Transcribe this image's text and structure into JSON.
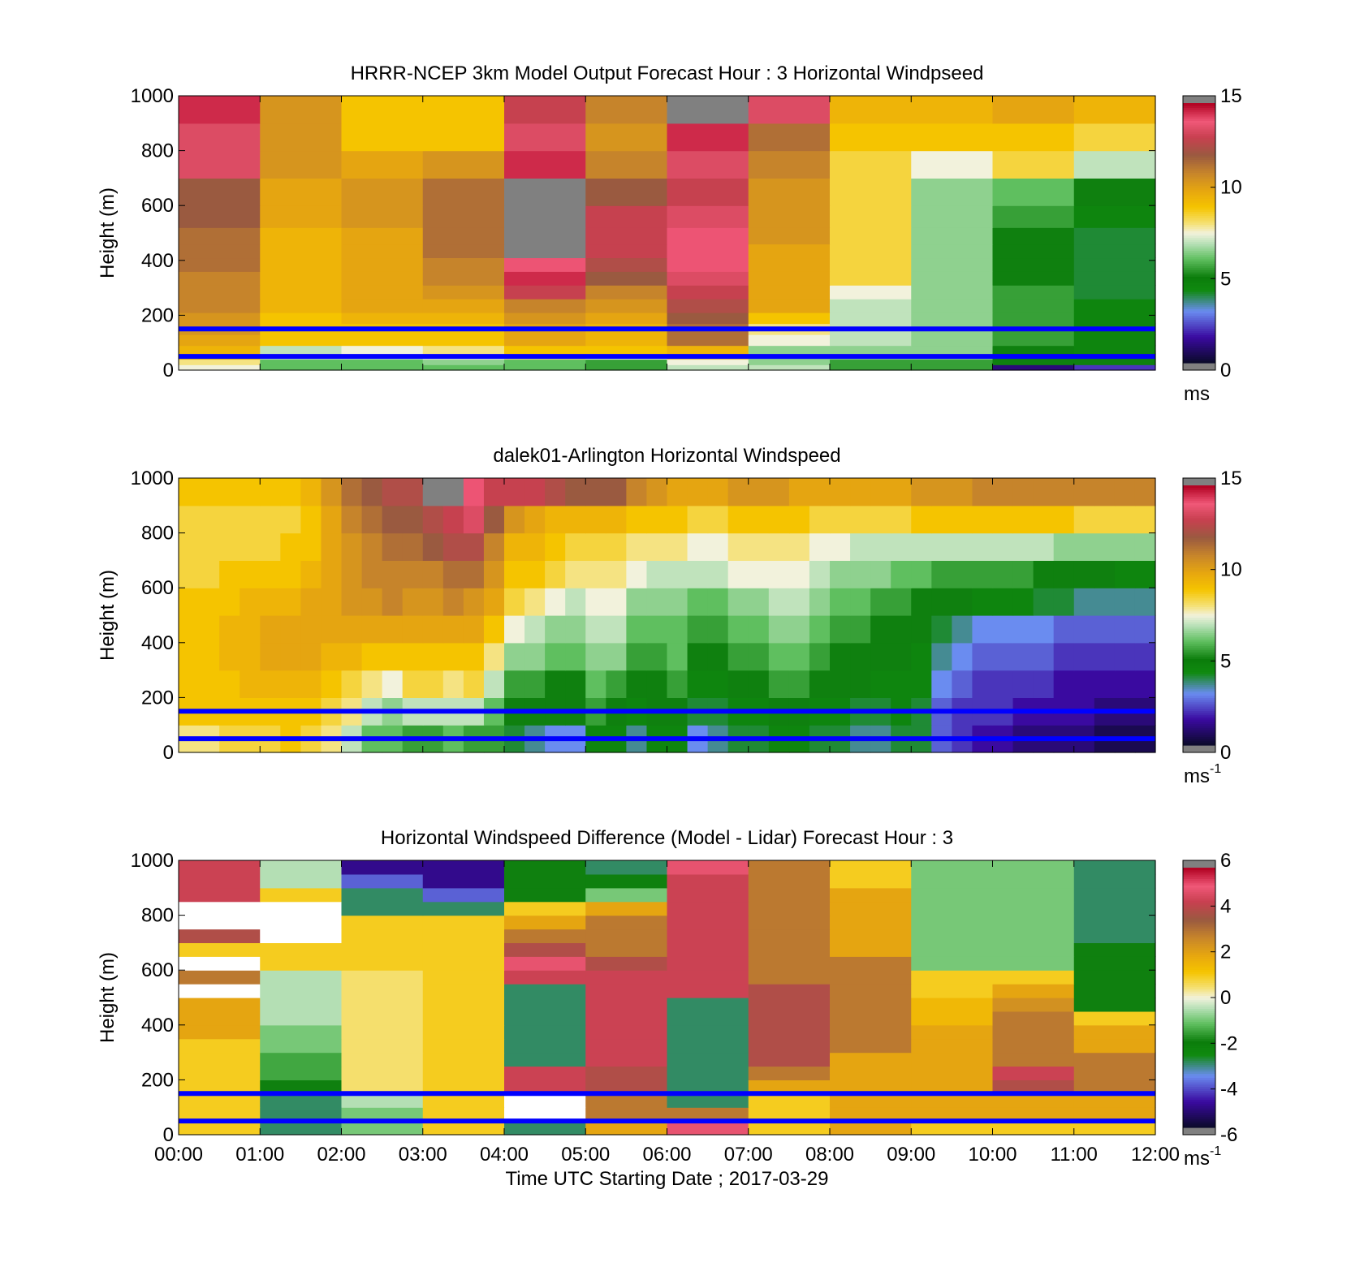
{
  "x_tick_labels": [
    "00:00",
    "01:00",
    "02:00",
    "03:00",
    "04:00",
    "05:00",
    "06:00",
    "07:00",
    "08:00",
    "09:00",
    "10:00",
    "11:00",
    "12:00"
  ],
  "x_axis_label": "Time UTC  Starting Date ; 2017-03-29",
  "reference_lines_m": [
    150,
    50
  ],
  "reference_line_color": "#0000ff",
  "missing_color": "#808080",
  "chart_data": [
    {
      "type": "heatmap",
      "title": "HRRR-NCEP 3km Model Output   Forecast Hour : 3 Horizontal Windpseed",
      "ylabel": "Height (m)",
      "xlim_hours": [
        0,
        12
      ],
      "ylim": [
        0,
        1000
      ],
      "y_ticks": [
        0,
        200,
        400,
        600,
        800,
        1000
      ],
      "colorbar": {
        "min": 0,
        "max": 15,
        "ticks": [
          0,
          5,
          10,
          15
        ],
        "unit": "ms",
        "unit_sup": ""
      },
      "x_hours": [
        0.5,
        1.5,
        2.5,
        3.5,
        4.5,
        5.5,
        6.5,
        7.5,
        8.5,
        9.5,
        10.5,
        11.5
      ],
      "heights_m": [
        0,
        20,
        40,
        60,
        90,
        130,
        170,
        210,
        260,
        310,
        360,
        410,
        460,
        520,
        600,
        700,
        800,
        900,
        1000
      ],
      "values": [
        [
          7.5,
          6,
          6,
          6,
          6,
          5.5,
          7,
          7,
          5.5,
          5.5,
          1,
          2
        ],
        [
          8,
          6,
          6,
          6.5,
          6,
          5.5,
          7.5,
          6.5,
          5.5,
          5.5,
          5,
          5
        ],
        [
          9,
          7,
          7,
          7.5,
          8,
          7.5,
          8.5,
          6.5,
          6.5,
          6.5,
          4.5,
          4.5
        ],
        [
          9.5,
          7,
          7.5,
          8,
          9,
          9,
          9.5,
          6.5,
          6.5,
          6.5,
          5,
          4.5
        ],
        [
          10,
          9,
          9,
          9,
          10,
          9.5,
          11.5,
          7.5,
          7,
          6.5,
          5.5,
          4.5
        ],
        [
          10.5,
          9,
          9,
          9,
          10,
          9.5,
          11.5,
          8,
          7,
          6.5,
          5.5,
          4.5
        ],
        [
          10.5,
          9,
          9.5,
          9.5,
          10.5,
          10,
          12,
          9,
          7,
          6.5,
          5.5,
          4.5
        ],
        [
          11,
          9.5,
          10,
          10,
          11,
          10.5,
          12.5,
          10,
          7,
          6.5,
          5.5,
          4.5
        ],
        [
          11,
          9.5,
          10,
          10.5,
          13,
          11,
          13,
          10,
          7.5,
          6.5,
          5.5,
          4
        ],
        [
          11,
          9.5,
          10,
          11,
          14.5,
          12,
          13.5,
          10,
          8.5,
          6.5,
          5,
          4
        ],
        [
          11.5,
          9.5,
          10,
          11,
          14,
          12.5,
          14,
          10,
          8.5,
          6.5,
          5,
          4
        ],
        [
          11.5,
          9.5,
          10,
          11.5,
          -1,
          13,
          14,
          10,
          8.5,
          6.5,
          5,
          4
        ],
        [
          11.5,
          9.5,
          10,
          11.5,
          -1,
          13,
          14,
          10.5,
          8.5,
          6.5,
          5,
          4
        ],
        [
          12,
          10,
          10.5,
          11.5,
          -1,
          13,
          13.5,
          10.5,
          8.5,
          6.5,
          5.5,
          4.5
        ],
        [
          12,
          10,
          10.5,
          11.5,
          -1,
          12,
          13,
          10.5,
          8.5,
          6.5,
          6,
          5
        ],
        [
          13.5,
          10.5,
          10,
          10.5,
          14.5,
          11,
          13.5,
          11,
          8.5,
          7.5,
          8.5,
          7
        ],
        [
          13.5,
          10.5,
          9,
          9,
          13.5,
          10.5,
          14.5,
          11.5,
          9,
          9,
          9,
          8.5
        ],
        [
          14.5,
          10.5,
          9,
          9,
          13,
          11,
          -1,
          13.5,
          9.5,
          9.5,
          10,
          9.5
        ]
      ]
    },
    {
      "type": "heatmap",
      "title": "dalek01-Arlington  Horizontal Windspeed",
      "ylabel": "Height (m)",
      "xlim_hours": [
        0,
        12
      ],
      "ylim": [
        0,
        1000
      ],
      "y_ticks": [
        0,
        200,
        400,
        600,
        800,
        1000
      ],
      "colorbar": {
        "min": 0,
        "max": 15,
        "ticks": [
          0,
          5,
          10,
          15
        ],
        "unit": "ms",
        "unit_sup": "-1"
      },
      "x_hours": [
        0.125,
        0.375,
        0.625,
        0.875,
        1.125,
        1.375,
        1.625,
        1.875,
        2.125,
        2.375,
        2.625,
        2.875,
        3.125,
        3.375,
        3.625,
        3.875,
        4.125,
        4.375,
        4.625,
        4.875,
        5.125,
        5.375,
        5.625,
        5.875,
        6.125,
        6.375,
        6.625,
        6.875,
        7.125,
        7.375,
        7.625,
        7.875,
        8.125,
        8.375,
        8.625,
        8.875,
        9.125,
        9.375,
        9.625,
        9.875,
        10.125,
        10.375,
        10.625,
        10.875,
        11.125,
        11.375,
        11.625,
        11.875
      ],
      "heights_m": [
        0,
        100,
        200,
        300,
        400,
        500,
        600,
        700,
        800,
        900,
        1000
      ],
      "values": [
        [
          8,
          8,
          8.5,
          8.5,
          8.5,
          9,
          8.5,
          8,
          7,
          6,
          6,
          5.5,
          5.5,
          6,
          5.5,
          5.5,
          4,
          3.5,
          3,
          3,
          4.5,
          4.5,
          3.5,
          4.5,
          4.5,
          3,
          3.5,
          4,
          4,
          4.5,
          4.5,
          4,
          4,
          3.5,
          3.5,
          4,
          4,
          2.5,
          2,
          1.5,
          1.5,
          1,
          1,
          1,
          1,
          0.5,
          0.5,
          0.5
        ],
        [
          9,
          9,
          9,
          9,
          9,
          9,
          9,
          8.5,
          8,
          7,
          6.5,
          7,
          7,
          7,
          7,
          6,
          5,
          5,
          5,
          5,
          5.5,
          5,
          4.5,
          5,
          5,
          4,
          4,
          4.5,
          4.5,
          5,
          5,
          4.5,
          4.5,
          4,
          4,
          4.5,
          4,
          2.5,
          2,
          2,
          2,
          1.5,
          1.5,
          1.5,
          1.5,
          1,
          1,
          1
        ],
        [
          9,
          9,
          9,
          9.5,
          9.5,
          9.5,
          9.5,
          9,
          8.5,
          8,
          7.5,
          8.5,
          8.5,
          8,
          8.5,
          7,
          5.5,
          5.5,
          5,
          5,
          6,
          5.5,
          5,
          5,
          5.5,
          4.5,
          4.5,
          5,
          5,
          5.5,
          5.5,
          5,
          5,
          5,
          4.5,
          4.5,
          4.5,
          3,
          2.5,
          2,
          2,
          2,
          2,
          1.5,
          1.5,
          1.5,
          1.5,
          1.5
        ],
        [
          9,
          9,
          9.5,
          9.5,
          10,
          10,
          10,
          9.5,
          9.5,
          9,
          9,
          9,
          9,
          9,
          9,
          8,
          6.5,
          6.5,
          6,
          6,
          6.5,
          6.5,
          5.5,
          5.5,
          6,
          5,
          5,
          5.5,
          5.5,
          6,
          6,
          5.5,
          5,
          5,
          5,
          5,
          4.5,
          3.5,
          3,
          2.5,
          2.5,
          2.5,
          2.5,
          2,
          2,
          2,
          2,
          2
        ],
        [
          9,
          9,
          9.5,
          9.5,
          10,
          10,
          10,
          10,
          10,
          10,
          10,
          10,
          10,
          10,
          10,
          9,
          7.5,
          7,
          6.5,
          6.5,
          7,
          7,
          6,
          6,
          6,
          5.5,
          5.5,
          6,
          6,
          6.5,
          6.5,
          6,
          5.5,
          5.5,
          5,
          5,
          5,
          4,
          3.5,
          3,
          3,
          3,
          3,
          2.5,
          2.5,
          2.5,
          2.5,
          2.5
        ],
        [
          9,
          9,
          9,
          9.5,
          9.5,
          9.5,
          10,
          10,
          10.5,
          10.5,
          11,
          10.5,
          10.5,
          11,
          10.5,
          10,
          8.5,
          8,
          7.5,
          7,
          7.5,
          7.5,
          6.5,
          6.5,
          6.5,
          6,
          6,
          6.5,
          6.5,
          7,
          7,
          6.5,
          6,
          6,
          5.5,
          5.5,
          5,
          5,
          5,
          4.5,
          4.5,
          4.5,
          4,
          4,
          3.5,
          3.5,
          3.5,
          3.5
        ],
        [
          8.5,
          8.5,
          9,
          9,
          9,
          9,
          9.5,
          10,
          10.5,
          11,
          11,
          11,
          11,
          11.5,
          11.5,
          10.5,
          9,
          9,
          8.5,
          8,
          8,
          8,
          7.5,
          7,
          7,
          7,
          7,
          7.5,
          7.5,
          7.5,
          7.5,
          7,
          6.5,
          6.5,
          6.5,
          6,
          6,
          5.5,
          5.5,
          5.5,
          5.5,
          5.5,
          5,
          5,
          5,
          5,
          4.5,
          4.5
        ],
        [
          8.5,
          8.5,
          8.5,
          8.5,
          8.5,
          9,
          9,
          10,
          10.5,
          11,
          11.5,
          11.5,
          12,
          12.5,
          12.5,
          11,
          9.5,
          9.5,
          9,
          8.5,
          8.5,
          8.5,
          8,
          8,
          8,
          7.5,
          7.5,
          8,
          8,
          8,
          8,
          7.5,
          7.5,
          7,
          7,
          7,
          7,
          7,
          7,
          7,
          7,
          7,
          7,
          6.5,
          6.5,
          6.5,
          6.5,
          6.5
        ],
        [
          8.5,
          8.5,
          8.5,
          8.5,
          8.5,
          8.5,
          9,
          10,
          11,
          11.5,
          12,
          12,
          12.5,
          13,
          13.5,
          12,
          10.5,
          10,
          9.5,
          9.5,
          9.5,
          9.5,
          9,
          9,
          9,
          8.5,
          8.5,
          9,
          9,
          9,
          9,
          8.5,
          8.5,
          8.5,
          8.5,
          8.5,
          9,
          9,
          9,
          9,
          9,
          9,
          9,
          9,
          8.5,
          8.5,
          8.5,
          8.5
        ],
        [
          9,
          9,
          9,
          9,
          9,
          9,
          9.5,
          10.5,
          11.5,
          12,
          12.5,
          12.5,
          -1,
          -1,
          14,
          13,
          13,
          13,
          12.5,
          12,
          12,
          12,
          11,
          10.5,
          10,
          10,
          10,
          10.5,
          10.5,
          10.5,
          10,
          10,
          10,
          10,
          10,
          10,
          10.5,
          10.5,
          10.5,
          11,
          11,
          11,
          11,
          11,
          11,
          11,
          11,
          11
        ]
      ]
    },
    {
      "type": "heatmap",
      "title": "Horizontal Windspeed Difference (Model - Lidar) Forecast Hour : 3",
      "ylabel": "Height (m)",
      "xlabel": "Time UTC  Starting Date ; 2017-03-29",
      "xlim_hours": [
        0,
        12
      ],
      "ylim": [
        0,
        1000
      ],
      "y_ticks": [
        0,
        200,
        400,
        600,
        800,
        1000
      ],
      "colorbar": {
        "min": -6,
        "max": 6,
        "ticks": [
          -6,
          -4,
          -2,
          0,
          2,
          4,
          6
        ],
        "unit": "ms",
        "unit_sup": "-1"
      },
      "x_hours": [
        0.5,
        1.5,
        2.5,
        3.5,
        4.5,
        5.5,
        6.5,
        7.5,
        8.5,
        9.5,
        10.5,
        11.5
      ],
      "heights_m": [
        0,
        50,
        100,
        150,
        200,
        250,
        300,
        350,
        400,
        450,
        500,
        550,
        600,
        650,
        700,
        750,
        800,
        850,
        900,
        950,
        1000
      ],
      "values": [
        [
          1,
          -3,
          -1,
          1,
          -3,
          2,
          5,
          1,
          2,
          1,
          1,
          1
        ],
        [
          1,
          -3,
          -1,
          1,
          null,
          3,
          3,
          1,
          2,
          2,
          2,
          2
        ],
        [
          1,
          -3,
          -0.5,
          1,
          null,
          3,
          -3,
          1,
          2,
          2,
          2,
          2
        ],
        [
          1,
          -2,
          0.5,
          1,
          4.5,
          4,
          -3,
          2,
          2,
          2,
          4,
          3
        ],
        [
          1,
          -1.5,
          0.5,
          1,
          4.5,
          4,
          -3,
          3,
          2,
          2,
          4.5,
          3
        ],
        [
          1,
          -1.5,
          0.5,
          1,
          -3,
          4.5,
          -3,
          4,
          2,
          2,
          3,
          3
        ],
        [
          1,
          -1,
          0.5,
          1,
          -3,
          4.5,
          -3,
          4,
          3,
          2,
          3,
          2
        ],
        [
          2,
          -1,
          0.5,
          1,
          -3,
          4.5,
          -3,
          4,
          3,
          2,
          3,
          2
        ],
        [
          2,
          -0.5,
          0.5,
          1,
          -3,
          4.5,
          -3,
          4,
          3,
          1.5,
          3,
          1
        ],
        [
          2,
          -0.5,
          0.5,
          1,
          -3,
          4.5,
          -3,
          4,
          3,
          1.5,
          2.5,
          -2
        ],
        [
          null,
          -0.5,
          0.5,
          1,
          -3,
          4.5,
          4.5,
          4,
          3,
          1,
          2,
          -2
        ],
        [
          3,
          -0.5,
          0.5,
          1,
          4.5,
          4.5,
          4.5,
          3,
          3,
          1,
          1,
          -2
        ],
        [
          null,
          1,
          1,
          1,
          5,
          4,
          4.5,
          3,
          3,
          -1,
          -1,
          -2
        ],
        [
          1,
          1,
          1,
          1,
          4,
          3,
          4.5,
          3,
          2,
          -1,
          -1,
          -2
        ],
        [
          4,
          null,
          1,
          1,
          3,
          3,
          4.5,
          3,
          2,
          -1,
          -1,
          -3
        ],
        [
          null,
          null,
          1,
          1,
          2,
          3,
          4.5,
          3,
          2,
          -1,
          -1,
          -3
        ],
        [
          null,
          null,
          -3,
          -3,
          1,
          2,
          4.5,
          3,
          2,
          -1,
          -1,
          -3
        ],
        [
          4.5,
          1,
          -3,
          -4,
          -2,
          -1,
          4.5,
          3,
          2,
          -1,
          -1,
          -3
        ],
        [
          4.5,
          -0.5,
          -4,
          -5,
          -2,
          -2,
          4.5,
          3,
          1,
          -1,
          -1,
          -3
        ],
        [
          4.5,
          -0.5,
          -5,
          -5,
          -2,
          -3,
          5,
          3,
          1,
          -1,
          -1,
          -3
        ]
      ]
    }
  ]
}
